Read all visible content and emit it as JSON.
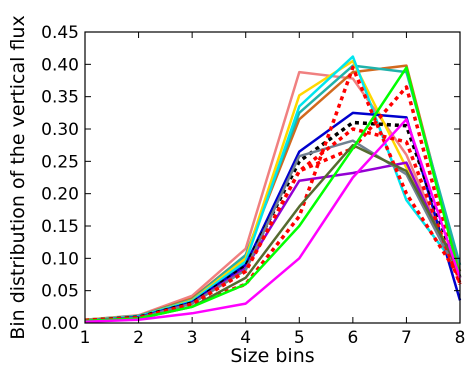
{
  "chart_data": {
    "type": "line",
    "title": "",
    "xlabel": "Size bins",
    "ylabel": "Bin distribution of the vertical flux",
    "xlim": [
      1,
      8
    ],
    "ylim": [
      0,
      0.45
    ],
    "x": [
      1,
      2,
      3,
      4,
      5,
      6,
      7,
      8
    ],
    "x_ticks": [
      "1",
      "2",
      "3",
      "4",
      "5",
      "6",
      "7",
      "8"
    ],
    "y_ticks": [
      "0.00",
      "0.05",
      "0.10",
      "0.15",
      "0.20",
      "0.25",
      "0.30",
      "0.35",
      "0.40",
      "0.45"
    ],
    "grid": false,
    "series": [
      {
        "color": "#f08080",
        "style": "solid",
        "values": [
          0.005,
          0.012,
          0.042,
          0.115,
          0.388,
          0.378,
          0.26,
          0.07
        ]
      },
      {
        "color": "#d2691e",
        "style": "solid",
        "values": [
          0.005,
          0.011,
          0.038,
          0.105,
          0.315,
          0.388,
          0.398,
          0.08
        ]
      },
      {
        "color": "#20b2aa",
        "style": "solid",
        "values": [
          0.005,
          0.011,
          0.036,
          0.105,
          0.325,
          0.398,
          0.388,
          0.09
        ]
      },
      {
        "color": "#ffd700",
        "style": "solid",
        "values": [
          0.005,
          0.01,
          0.035,
          0.1,
          0.352,
          0.405,
          0.24,
          0.08
        ]
      },
      {
        "color": "#00e5ee",
        "style": "solid",
        "values": [
          0.004,
          0.01,
          0.034,
          0.095,
          0.335,
          0.412,
          0.19,
          0.08
        ]
      },
      {
        "color": "#0000cd",
        "style": "solid",
        "values": [
          0.004,
          0.009,
          0.032,
          0.09,
          0.265,
          0.325,
          0.318,
          0.035
        ]
      },
      {
        "color": "#000000",
        "style": "dotted",
        "values": [
          0.004,
          0.009,
          0.031,
          0.088,
          0.25,
          0.31,
          0.305,
          0.07
        ]
      },
      {
        "color": "#9400d3",
        "style": "solid",
        "values": [
          0.004,
          0.008,
          0.03,
          0.085,
          0.22,
          0.232,
          0.248,
          0.07
        ]
      },
      {
        "color": "#708090",
        "style": "solid",
        "values": [
          0.004,
          0.008,
          0.03,
          0.082,
          0.258,
          0.282,
          0.23,
          0.07
        ]
      },
      {
        "color": "#ff0000",
        "style": "dotted",
        "values": [
          0.004,
          0.008,
          0.029,
          0.06,
          0.165,
          0.395,
          0.2,
          0.07
        ]
      },
      {
        "color": "#ff0000",
        "style": "dotted",
        "values": [
          0.004,
          0.008,
          0.029,
          0.08,
          0.235,
          0.3,
          0.28,
          0.06
        ]
      },
      {
        "color": "#ff0000",
        "style": "dotted",
        "values": [
          0.004,
          0.008,
          0.029,
          0.08,
          0.235,
          0.27,
          0.365,
          0.06
        ]
      },
      {
        "color": "#556b2f",
        "style": "solid",
        "values": [
          0.003,
          0.007,
          0.025,
          0.07,
          0.18,
          0.275,
          0.235,
          0.08
        ]
      },
      {
        "color": "#00ff00",
        "style": "solid",
        "values": [
          0.003,
          0.007,
          0.025,
          0.06,
          0.15,
          0.27,
          0.395,
          0.07
        ]
      },
      {
        "color": "#ff00ff",
        "style": "solid",
        "values": [
          0.002,
          0.005,
          0.015,
          0.03,
          0.1,
          0.225,
          0.315,
          0.07
        ]
      }
    ]
  }
}
